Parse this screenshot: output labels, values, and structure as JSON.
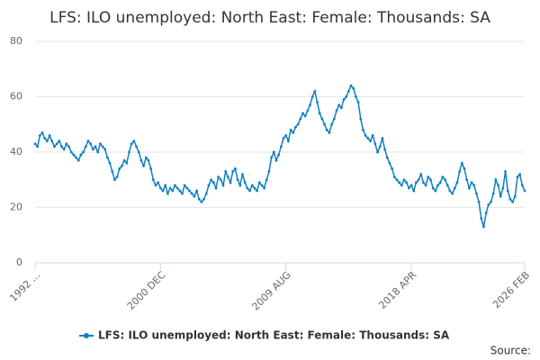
{
  "chart_data": {
    "type": "line",
    "title": "LFS: ILO unemployed: North East: Female: Thousands: SA",
    "source_label": "Source:",
    "categories": [
      "1992 ...",
      null,
      null,
      null,
      null,
      null,
      null,
      null,
      null,
      null,
      null,
      null,
      null,
      null,
      null,
      null,
      null,
      null,
      null,
      null,
      null,
      null,
      null,
      null,
      null,
      null,
      null,
      null,
      null,
      null,
      null,
      null,
      null,
      null,
      null,
      null,
      null,
      null,
      null,
      null,
      null,
      null,
      null,
      null,
      null,
      null,
      null,
      null,
      null,
      null,
      null,
      null,
      "2000 DEC",
      null,
      null,
      null,
      null,
      null,
      null,
      null,
      null,
      null,
      null,
      null,
      null,
      null,
      null,
      null,
      null,
      null,
      null,
      null,
      null,
      null,
      null,
      null,
      null,
      null,
      null,
      null,
      null,
      null,
      null,
      null,
      null,
      null,
      null,
      null,
      null,
      null,
      null,
      null,
      null,
      null,
      null,
      null,
      null,
      null,
      null,
      null,
      null,
      null,
      null,
      null,
      "2009 AUG",
      null,
      null,
      null,
      null,
      null,
      null,
      null,
      null,
      null,
      null,
      null,
      null,
      null,
      null,
      null,
      null,
      null,
      null,
      null,
      null,
      null,
      null,
      null,
      null,
      null,
      null,
      null,
      null,
      null,
      null,
      null,
      null,
      null,
      null,
      null,
      null,
      null,
      null,
      null,
      null,
      null,
      null,
      null,
      null,
      null,
      null,
      null,
      null,
      null,
      null,
      null,
      "2018 APR",
      null,
      null,
      null,
      null,
      null,
      null,
      null,
      null,
      null,
      null,
      null,
      null,
      null,
      null,
      null,
      null,
      null,
      null,
      null,
      null,
      null,
      null,
      null,
      null,
      null,
      null,
      null,
      null,
      null,
      null,
      null,
      null,
      null,
      null,
      null,
      null,
      null,
      null,
      null,
      null,
      null,
      null,
      null,
      null,
      null,
      null,
      "2026 FEB"
    ],
    "series": [
      {
        "name": "LFS: ILO unemployed: North East: Female: Thousands: SA",
        "color": "#0f7fc3",
        "values": [
          43,
          42,
          46,
          47,
          45,
          44,
          46,
          44,
          42,
          43,
          44,
          42,
          41,
          43,
          42,
          40,
          39,
          38,
          37,
          39,
          40,
          42,
          44,
          43,
          41,
          42,
          40,
          43,
          42,
          41,
          38,
          36,
          33,
          30,
          31,
          34,
          35,
          37,
          36,
          40,
          43,
          44,
          42,
          40,
          37,
          35,
          38,
          37,
          34,
          30,
          28,
          29,
          27,
          26,
          28,
          25,
          27,
          26,
          28,
          27,
          26,
          25,
          28,
          27,
          26,
          25,
          24,
          26,
          23,
          22,
          23,
          25,
          28,
          30,
          29,
          27,
          31,
          30,
          28,
          33,
          31,
          29,
          33,
          34,
          30,
          28,
          32,
          29,
          27,
          26,
          28,
          27,
          26,
          29,
          28,
          27,
          30,
          33,
          38,
          40,
          37,
          39,
          42,
          45,
          46,
          44,
          48,
          47,
          49,
          50,
          52,
          54,
          53,
          55,
          57,
          60,
          62,
          58,
          54,
          52,
          50,
          48,
          47,
          50,
          52,
          55,
          57,
          56,
          59,
          60,
          62,
          64,
          63,
          60,
          58,
          52,
          48,
          46,
          45,
          44,
          46,
          43,
          40,
          42,
          45,
          41,
          38,
          36,
          34,
          31,
          30,
          29,
          28,
          30,
          29,
          27,
          28,
          26,
          29,
          30,
          32,
          29,
          28,
          31,
          30,
          27,
          26,
          28,
          29,
          31,
          30,
          28,
          26,
          25,
          27,
          29,
          33,
          36,
          34,
          30,
          27,
          29,
          28,
          25,
          22,
          16,
          13,
          18,
          21,
          22,
          25,
          30,
          28,
          24,
          27,
          33,
          26,
          23,
          22,
          24,
          31,
          32,
          28,
          26
        ]
      }
    ],
    "ylim": [
      0,
      80
    ],
    "yticks": [
      0,
      20,
      40,
      60,
      80
    ],
    "grid": true
  }
}
